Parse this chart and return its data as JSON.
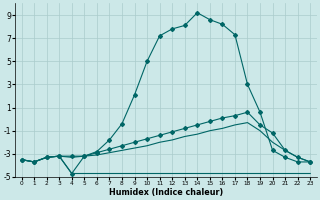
{
  "bg_color": "#cce8e8",
  "grid_color": "#aacccc",
  "line_color": "#006666",
  "xlabel": "Humidex (Indice chaleur)",
  "xlim": [
    0,
    23
  ],
  "ylim": [
    -5,
    10
  ],
  "xtick_labels": [
    "0",
    "1",
    "2",
    "3",
    "4",
    "5",
    "6",
    "7",
    "8",
    "9",
    "10",
    "11",
    "12",
    "13",
    "14",
    "15",
    "16",
    "17",
    "18",
    "19",
    "20",
    "21",
    "22",
    "23"
  ],
  "ytick_vals": [
    -5,
    -3,
    -1,
    1,
    3,
    5,
    7,
    9
  ],
  "s1_x": [
    0,
    1,
    2,
    3,
    4,
    5,
    6,
    7,
    8,
    9,
    10,
    11,
    12,
    13,
    14,
    15,
    16,
    17,
    18,
    19,
    20,
    21,
    22,
    23
  ],
  "s1_y": [
    -3.5,
    -3.7,
    -3.3,
    -3.2,
    -4.7,
    -3.2,
    -2.8,
    -1.8,
    -0.4,
    2.1,
    5.0,
    7.2,
    7.8,
    8.1,
    9.2,
    8.6,
    8.2,
    7.3,
    3.0,
    0.6,
    -2.7,
    -3.3,
    -3.7,
    -3.7
  ],
  "s2_x": [
    0,
    1,
    2,
    3,
    4,
    5,
    6,
    7,
    8,
    9,
    10,
    11,
    12,
    13,
    14,
    15,
    16,
    17,
    18,
    19,
    20,
    21,
    22,
    23
  ],
  "s2_y": [
    -3.5,
    -3.7,
    -3.3,
    -3.2,
    -4.7,
    -4.7,
    -4.7,
    -4.7,
    -4.7,
    -4.7,
    -4.7,
    -4.7,
    -4.7,
    -4.7,
    -4.7,
    -4.7,
    -4.7,
    -4.7,
    -4.7,
    -4.7,
    -4.7,
    -4.7,
    -4.7,
    -4.7
  ],
  "s3_x": [
    0,
    1,
    2,
    3,
    4,
    5,
    6,
    7,
    8,
    9,
    10,
    11,
    12,
    13,
    14,
    15,
    16,
    17,
    18,
    19,
    20,
    21,
    22,
    23
  ],
  "s3_y": [
    -3.5,
    -3.7,
    -3.3,
    -3.2,
    -3.2,
    -3.2,
    -2.9,
    -2.6,
    -2.3,
    -2.0,
    -1.7,
    -1.4,
    -1.1,
    -0.8,
    -0.5,
    -0.2,
    0.1,
    0.3,
    0.6,
    -0.5,
    -1.2,
    -2.7,
    -3.3,
    -3.7
  ],
  "s4_x": [
    0,
    1,
    2,
    3,
    4,
    5,
    6,
    7,
    8,
    9,
    10,
    11,
    12,
    13,
    14,
    15,
    16,
    17,
    18,
    19,
    20,
    21,
    22,
    23
  ],
  "s4_y": [
    -3.5,
    -3.7,
    -3.3,
    -3.2,
    -3.3,
    -3.2,
    -3.1,
    -2.9,
    -2.7,
    -2.5,
    -2.3,
    -2.0,
    -1.8,
    -1.5,
    -1.3,
    -1.0,
    -0.8,
    -0.5,
    -0.3,
    -1.0,
    -2.0,
    -2.7,
    -3.3,
    -3.7
  ]
}
